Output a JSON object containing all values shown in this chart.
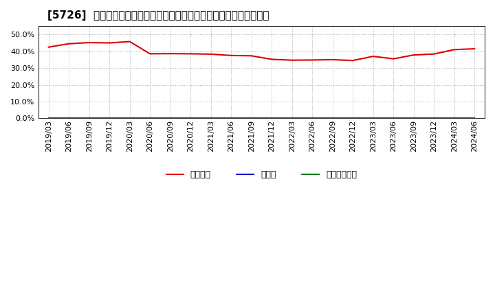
{
  "title": "[5726]  自己資本、のれん、繰延税金資産の総資産に対する比率の推移",
  "x_labels": [
    "2019/03",
    "2019/06",
    "2019/09",
    "2019/12",
    "2020/03",
    "2020/06",
    "2020/09",
    "2020/12",
    "2021/03",
    "2021/06",
    "2021/09",
    "2021/12",
    "2022/03",
    "2022/06",
    "2022/09",
    "2022/12",
    "2023/03",
    "2023/06",
    "2023/09",
    "2023/12",
    "2024/03",
    "2024/06"
  ],
  "jiko_shihon": [
    0.425,
    0.445,
    0.452,
    0.45,
    0.458,
    0.385,
    0.386,
    0.385,
    0.383,
    0.375,
    0.373,
    0.352,
    0.347,
    0.348,
    0.35,
    0.345,
    0.37,
    0.355,
    0.378,
    0.384,
    0.41,
    0.415
  ],
  "noren": [
    0,
    0,
    0,
    0,
    0,
    0,
    0,
    0,
    0,
    0,
    0,
    0,
    0,
    0,
    0,
    0,
    0,
    0,
    0,
    0,
    0,
    0
  ],
  "kurinobe": [
    0,
    0,
    0,
    0,
    0,
    0,
    0,
    0,
    0,
    0,
    0,
    0,
    0,
    0,
    0,
    0,
    0,
    0,
    0,
    0,
    0,
    0
  ],
  "line_colors": {
    "jiko_shihon": "#dd0000",
    "noren": "#0000cc",
    "kurinobe": "#007700"
  },
  "legend_labels_jiko": "自己資本",
  "legend_labels_noren": "のれん",
  "legend_labels_kuri": "繰延税金資産",
  "ylim": [
    0.0,
    0.55
  ],
  "yticks": [
    0.0,
    0.1,
    0.2,
    0.3,
    0.4,
    0.5
  ],
  "background_color": "#ffffff",
  "plot_bg_color": "#ffffff",
  "grid_color": "#aaaaaa",
  "title_fontsize": 11,
  "tick_fontsize": 8,
  "legend_fontsize": 9
}
